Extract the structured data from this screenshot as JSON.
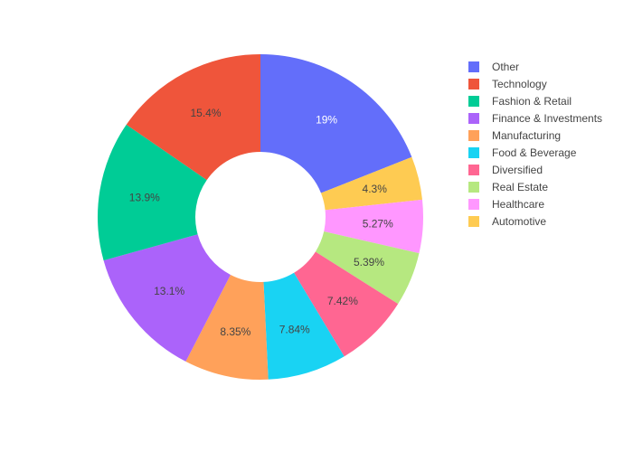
{
  "chart_data": {
    "type": "pie",
    "hole": true,
    "legend_position": "right",
    "slices": [
      {
        "label": "Other",
        "value": 19.0,
        "text": "19%",
        "color": "#636efa",
        "text_color": "#ffffff"
      },
      {
        "label": "Automotive",
        "value": 4.3,
        "text": "4.3%",
        "color": "#fecb52",
        "text_color": "#444444"
      },
      {
        "label": "Healthcare",
        "value": 5.27,
        "text": "5.27%",
        "color": "#ff97ff",
        "text_color": "#444444"
      },
      {
        "label": "Real Estate",
        "value": 5.39,
        "text": "5.39%",
        "color": "#b6e880",
        "text_color": "#444444"
      },
      {
        "label": "Diversified",
        "value": 7.42,
        "text": "7.42%",
        "color": "#ff6692",
        "text_color": "#444444"
      },
      {
        "label": "Food & Beverage",
        "value": 7.84,
        "text": "7.84%",
        "color": "#19d3f3",
        "text_color": "#444444"
      },
      {
        "label": "Manufacturing",
        "value": 8.35,
        "text": "8.35%",
        "color": "#ffa15a",
        "text_color": "#444444"
      },
      {
        "label": "Finance & Investments",
        "value": 13.1,
        "text": "13.1%",
        "color": "#ab63fa",
        "text_color": "#444444"
      },
      {
        "label": "Fashion & Retail",
        "value": 13.9,
        "text": "13.9%",
        "color": "#00cc96",
        "text_color": "#444444"
      },
      {
        "label": "Technology",
        "value": 15.4,
        "text": "15.4%",
        "color": "#ef553b",
        "text_color": "#444444"
      }
    ],
    "legend": [
      {
        "label": "Other",
        "color": "#636efa"
      },
      {
        "label": "Technology",
        "color": "#ef553b"
      },
      {
        "label": "Fashion & Retail",
        "color": "#00cc96"
      },
      {
        "label": "Finance & Investments",
        "color": "#ab63fa"
      },
      {
        "label": "Manufacturing",
        "color": "#ffa15a"
      },
      {
        "label": "Food & Beverage",
        "color": "#19d3f3"
      },
      {
        "label": "Diversified",
        "color": "#ff6692"
      },
      {
        "label": "Real Estate",
        "color": "#b6e880"
      },
      {
        "label": "Healthcare",
        "color": "#ff97ff"
      },
      {
        "label": "Automotive",
        "color": "#fecb52"
      }
    ]
  }
}
